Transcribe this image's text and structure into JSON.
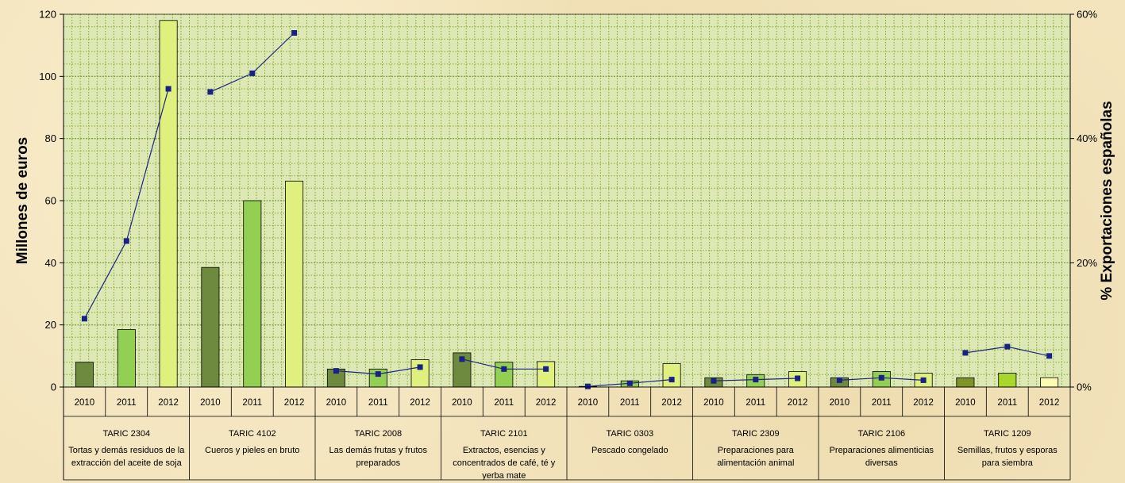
{
  "chart_data": {
    "type": "bar",
    "ylabel": "Millones de euros",
    "y2label": "% Exportaciones españolas",
    "ylim": [
      0,
      120
    ],
    "yticks": [
      "0",
      "20",
      "40",
      "60",
      "80",
      "100",
      "120"
    ],
    "y2lim": [
      0,
      60
    ],
    "y2ticks": [
      "0%",
      "20%",
      "40%",
      "60%"
    ],
    "grid": true,
    "years": [
      "2010",
      "2011",
      "2012"
    ],
    "groups": [
      {
        "code": "TARIC 2304",
        "desc": [
          "Tortas y demás residuos de la",
          "extracción del aceite de soja"
        ],
        "values": [
          8,
          18.5,
          118
        ],
        "pct": [
          11,
          23.5,
          48
        ]
      },
      {
        "code": "TARIC 4102",
        "desc": [
          "Cueros y pieles en bruto"
        ],
        "values": [
          38.5,
          60,
          66.3
        ],
        "pct": [
          47.5,
          50.5,
          57
        ]
      },
      {
        "code": "TARIC 2008",
        "desc": [
          "Las demás frutas y  frutos",
          "preparados"
        ],
        "values": [
          5.8,
          5.8,
          8.8
        ],
        "pct": [
          2.6,
          2.1,
          3.2
        ]
      },
      {
        "code": "TARIC 2101",
        "desc": [
          "Extractos, esencias y",
          "concentrados de café, té y",
          "yerba mate"
        ],
        "values": [
          11,
          8,
          8.2
        ],
        "pct": [
          4.5,
          2.9,
          2.9
        ]
      },
      {
        "code": "TARIC 0303",
        "desc": [
          "Pescado congelado"
        ],
        "values": [
          0.2,
          2,
          7.5
        ],
        "pct": [
          0.1,
          0.6,
          1.2
        ]
      },
      {
        "code": "TARIC 2309",
        "desc": [
          "Preparaciones para",
          "alimentación animal"
        ],
        "values": [
          3,
          4,
          5
        ],
        "pct": [
          1,
          1.2,
          1.4
        ]
      },
      {
        "code": "TARIC 2106",
        "desc": [
          "Preparaciones alimenticias",
          "diversas"
        ],
        "values": [
          3,
          5,
          4.5
        ],
        "pct": [
          1.1,
          1.5,
          1.1
        ]
      },
      {
        "code": "TARIC 1209",
        "desc": [
          "Semillas, frutos y esporas",
          "para siembra"
        ],
        "values": [
          3,
          4.5,
          3
        ],
        "pct": [
          5.5,
          6.5,
          5
        ]
      }
    ],
    "colors": {
      "bar_2010": "#6e8a3e",
      "bar_2011": "#93cf52",
      "bar_2012": "#dff07e",
      "bar_2010_last": "#7f9426",
      "bar_2011_last": "#a8d62a",
      "bar_2012_last": "#fbfbb2",
      "line": "#1d2680",
      "marker": "#1a2186",
      "grid": "#7fa832",
      "plot_bg": "#dde8b5"
    }
  }
}
